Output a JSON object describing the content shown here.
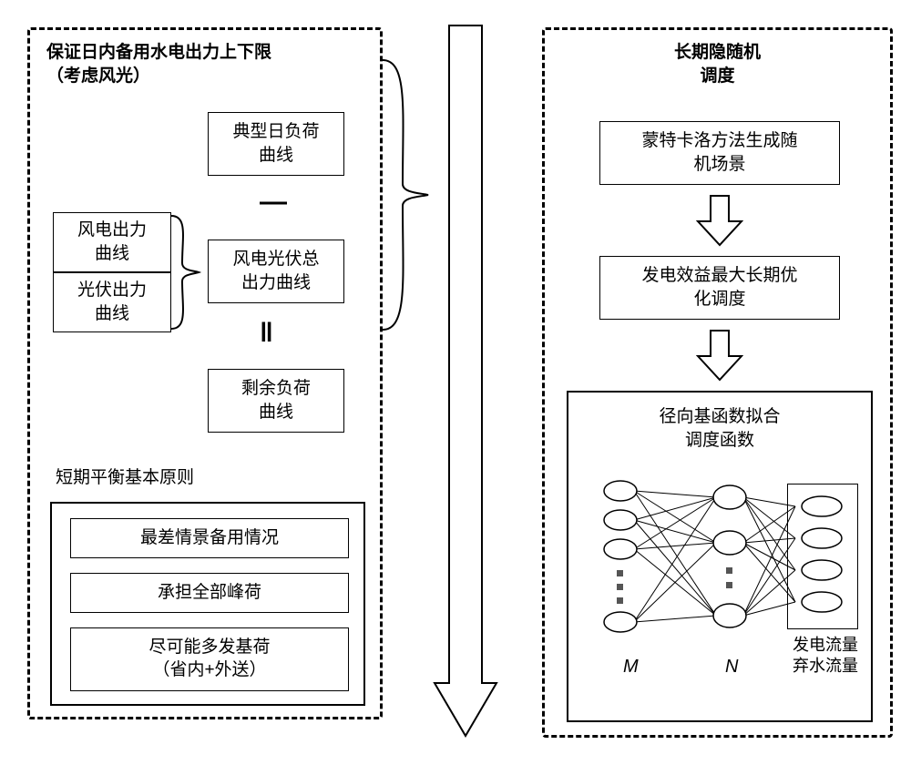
{
  "left_panel": {
    "title": "保证日内备用水电出力上下限\n（考虑风光）",
    "boxes": {
      "wind": "风电出力\n曲线",
      "solar": "光伏出力\n曲线",
      "typical": "典型日负荷\n曲线",
      "combined": "风电光伏总\n出力曲线",
      "residual": "剩余负荷\n曲线"
    },
    "ops": {
      "minus": "—",
      "equals": "‖"
    },
    "principles": {
      "label": "短期平衡基本原则",
      "p1": "最差情景备用情况",
      "p2": "承担全部峰荷",
      "p3": "尽可能多发基荷\n（省内+外送）"
    },
    "border_color": "#000000",
    "font_size": 19
  },
  "right_panel": {
    "title": "长期隐随机\n调度",
    "r1": "蒙特卡洛方法生成随\n机场景",
    "r2": "发电效益最大长期优\n化调度",
    "group_title": "径向基函数拟合\n调度函数",
    "nn": {
      "layer1_count": 3,
      "layer2_count": 3,
      "output_count": 4,
      "label_M": "M",
      "label_N": "N",
      "output_label": "发电流量\n弃水流量",
      "node_fill": "#ffffff",
      "node_stroke": "#000000",
      "dot_fill": "#555555"
    },
    "border_color": "#000000"
  },
  "arrows": {
    "fill": "#ffffff",
    "stroke": "#000000"
  }
}
